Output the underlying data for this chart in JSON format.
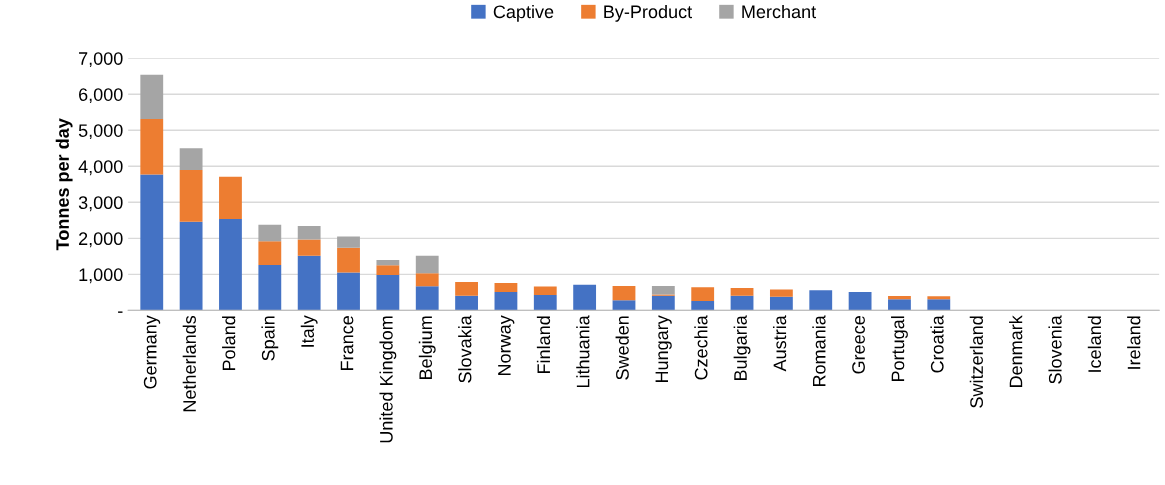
{
  "chart_data": {
    "type": "bar",
    "stacked": true,
    "ylabel": "Tonnes per day",
    "categories": [
      "Germany",
      "Netherlands",
      "Poland",
      "Spain",
      "Italy",
      "France",
      "United Kingdom",
      "Belgium",
      "Slovakia",
      "Norway",
      "Finland",
      "Lithuania",
      "Sweden",
      "Hungary",
      "Czechia",
      "Bulgaria",
      "Austria",
      "Romania",
      "Greece",
      "Portugal",
      "Croatia",
      "Switzerland",
      "Denmark",
      "Slovenia",
      "Iceland",
      "Ireland"
    ],
    "series": [
      {
        "name": "Captive",
        "color": "#4472c4",
        "values": [
          3770,
          2460,
          2540,
          1260,
          1520,
          1050,
          980,
          670,
          410,
          510,
          430,
          710,
          280,
          410,
          260,
          410,
          380,
          560,
          510,
          310,
          310,
          0,
          0,
          0,
          0,
          0
        ]
      },
      {
        "name": "By-Product",
        "color": "#ed7d31",
        "values": [
          1540,
          1440,
          1170,
          660,
          450,
          690,
          270,
          360,
          380,
          250,
          230,
          0,
          400,
          30,
          380,
          210,
          200,
          0,
          0,
          90,
          80,
          0,
          0,
          0,
          0,
          0
        ]
      },
      {
        "name": "Merchant",
        "color": "#a5a5a5",
        "values": [
          1230,
          600,
          0,
          460,
          370,
          310,
          150,
          490,
          0,
          0,
          null,
          0,
          0,
          240,
          0,
          0,
          0,
          0,
          null,
          0,
          0,
          null,
          null,
          0,
          0,
          0
        ]
      }
    ],
    "ylim": [
      0,
      7000
    ],
    "yticks": [
      {
        "value": 0,
        "label": "-"
      },
      {
        "value": 1000,
        "label": "1,000"
      },
      {
        "value": 2000,
        "label": "2,000"
      },
      {
        "value": 3000,
        "label": "3,000"
      },
      {
        "value": 4000,
        "label": "4,000"
      },
      {
        "value": 5000,
        "label": "5,000"
      },
      {
        "value": 6000,
        "label": "6,000"
      },
      {
        "value": 7000,
        "label": "7,000"
      }
    ],
    "grid": "y",
    "legend": "top"
  }
}
